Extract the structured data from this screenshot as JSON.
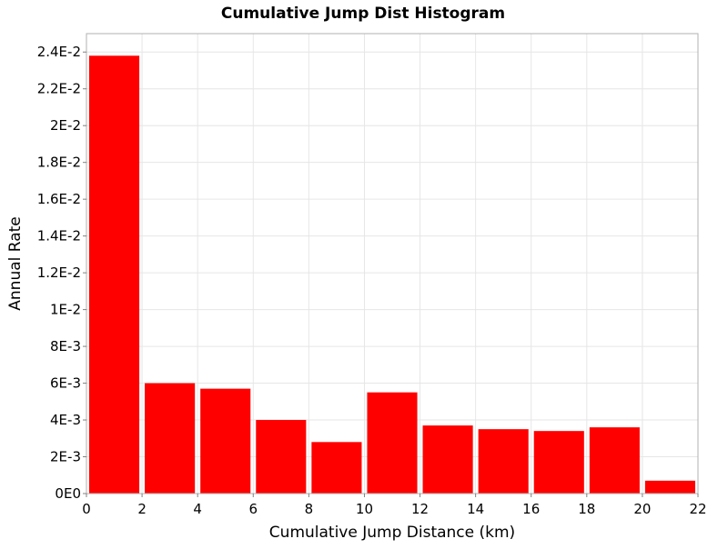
{
  "chart_data": {
    "type": "bar",
    "title": "Cumulative Jump Dist Histogram",
    "xlabel": "Cumulative Jump Distance (km)",
    "ylabel": "Annual Rate",
    "xlim": [
      0,
      22
    ],
    "ylim": [
      0,
      0.025
    ],
    "grid": true,
    "color": "#ff0000",
    "x_ticks": [
      {
        "value": 0,
        "label": "0"
      },
      {
        "value": 2,
        "label": "2"
      },
      {
        "value": 4,
        "label": "4"
      },
      {
        "value": 6,
        "label": "6"
      },
      {
        "value": 8,
        "label": "8"
      },
      {
        "value": 10,
        "label": "10"
      },
      {
        "value": 12,
        "label": "12"
      },
      {
        "value": 14,
        "label": "14"
      },
      {
        "value": 16,
        "label": "16"
      },
      {
        "value": 18,
        "label": "18"
      },
      {
        "value": 20,
        "label": "20"
      },
      {
        "value": 22,
        "label": "22"
      }
    ],
    "y_ticks": [
      {
        "value": 0,
        "label": "0E0"
      },
      {
        "value": 0.002,
        "label": "2E-3"
      },
      {
        "value": 0.004,
        "label": "4E-3"
      },
      {
        "value": 0.006,
        "label": "6E-3"
      },
      {
        "value": 0.008,
        "label": "8E-3"
      },
      {
        "value": 0.01,
        "label": "1E-2"
      },
      {
        "value": 0.012,
        "label": "1.2E-2"
      },
      {
        "value": 0.014,
        "label": "1.4E-2"
      },
      {
        "value": 0.016,
        "label": "1.6E-2"
      },
      {
        "value": 0.018,
        "label": "1.8E-2"
      },
      {
        "value": 0.02,
        "label": "2E-2"
      },
      {
        "value": 0.022,
        "label": "2.2E-2"
      },
      {
        "value": 0.024,
        "label": "2.4E-2"
      }
    ],
    "bins": [
      {
        "start": 0,
        "end": 2,
        "value": 0.0238
      },
      {
        "start": 2,
        "end": 4,
        "value": 0.006
      },
      {
        "start": 4,
        "end": 6,
        "value": 0.0057
      },
      {
        "start": 6,
        "end": 8,
        "value": 0.004
      },
      {
        "start": 8,
        "end": 10,
        "value": 0.0028
      },
      {
        "start": 10,
        "end": 12,
        "value": 0.0055
      },
      {
        "start": 12,
        "end": 14,
        "value": 0.0037
      },
      {
        "start": 14,
        "end": 16,
        "value": 0.0035
      },
      {
        "start": 16,
        "end": 18,
        "value": 0.0034
      },
      {
        "start": 18,
        "end": 20,
        "value": 0.0036
      },
      {
        "start": 20,
        "end": 22,
        "value": 0.0007
      }
    ]
  }
}
